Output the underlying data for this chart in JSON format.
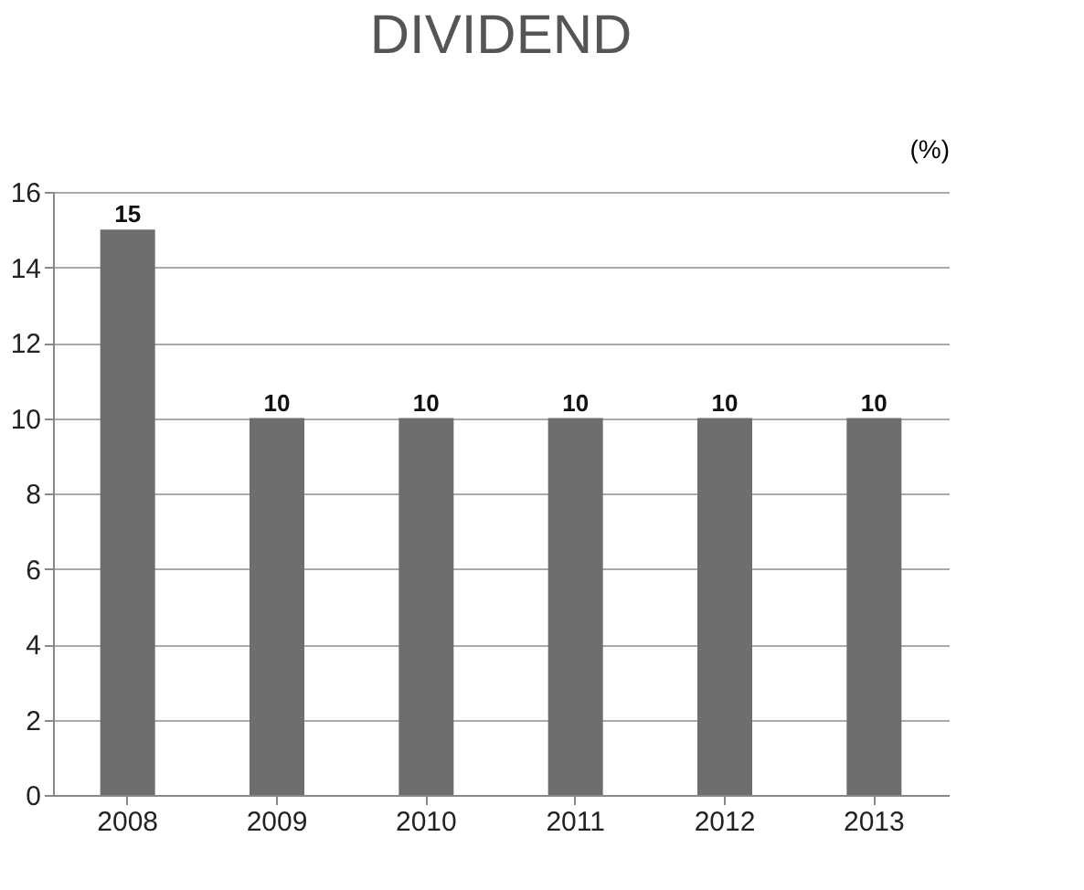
{
  "chart_data": {
    "type": "bar",
    "title": "DIVIDEND",
    "ylabel": "(%)",
    "categories": [
      "2008",
      "2009",
      "2010",
      "2011",
      "2012",
      "2013"
    ],
    "values": [
      15,
      10,
      10,
      10,
      10,
      10
    ],
    "color": "#6e6e6e",
    "ylim": [
      0,
      16
    ],
    "yticks": [
      0,
      2,
      4,
      6,
      8,
      10,
      12,
      14,
      16
    ],
    "grid": "y",
    "data_labels": true
  }
}
